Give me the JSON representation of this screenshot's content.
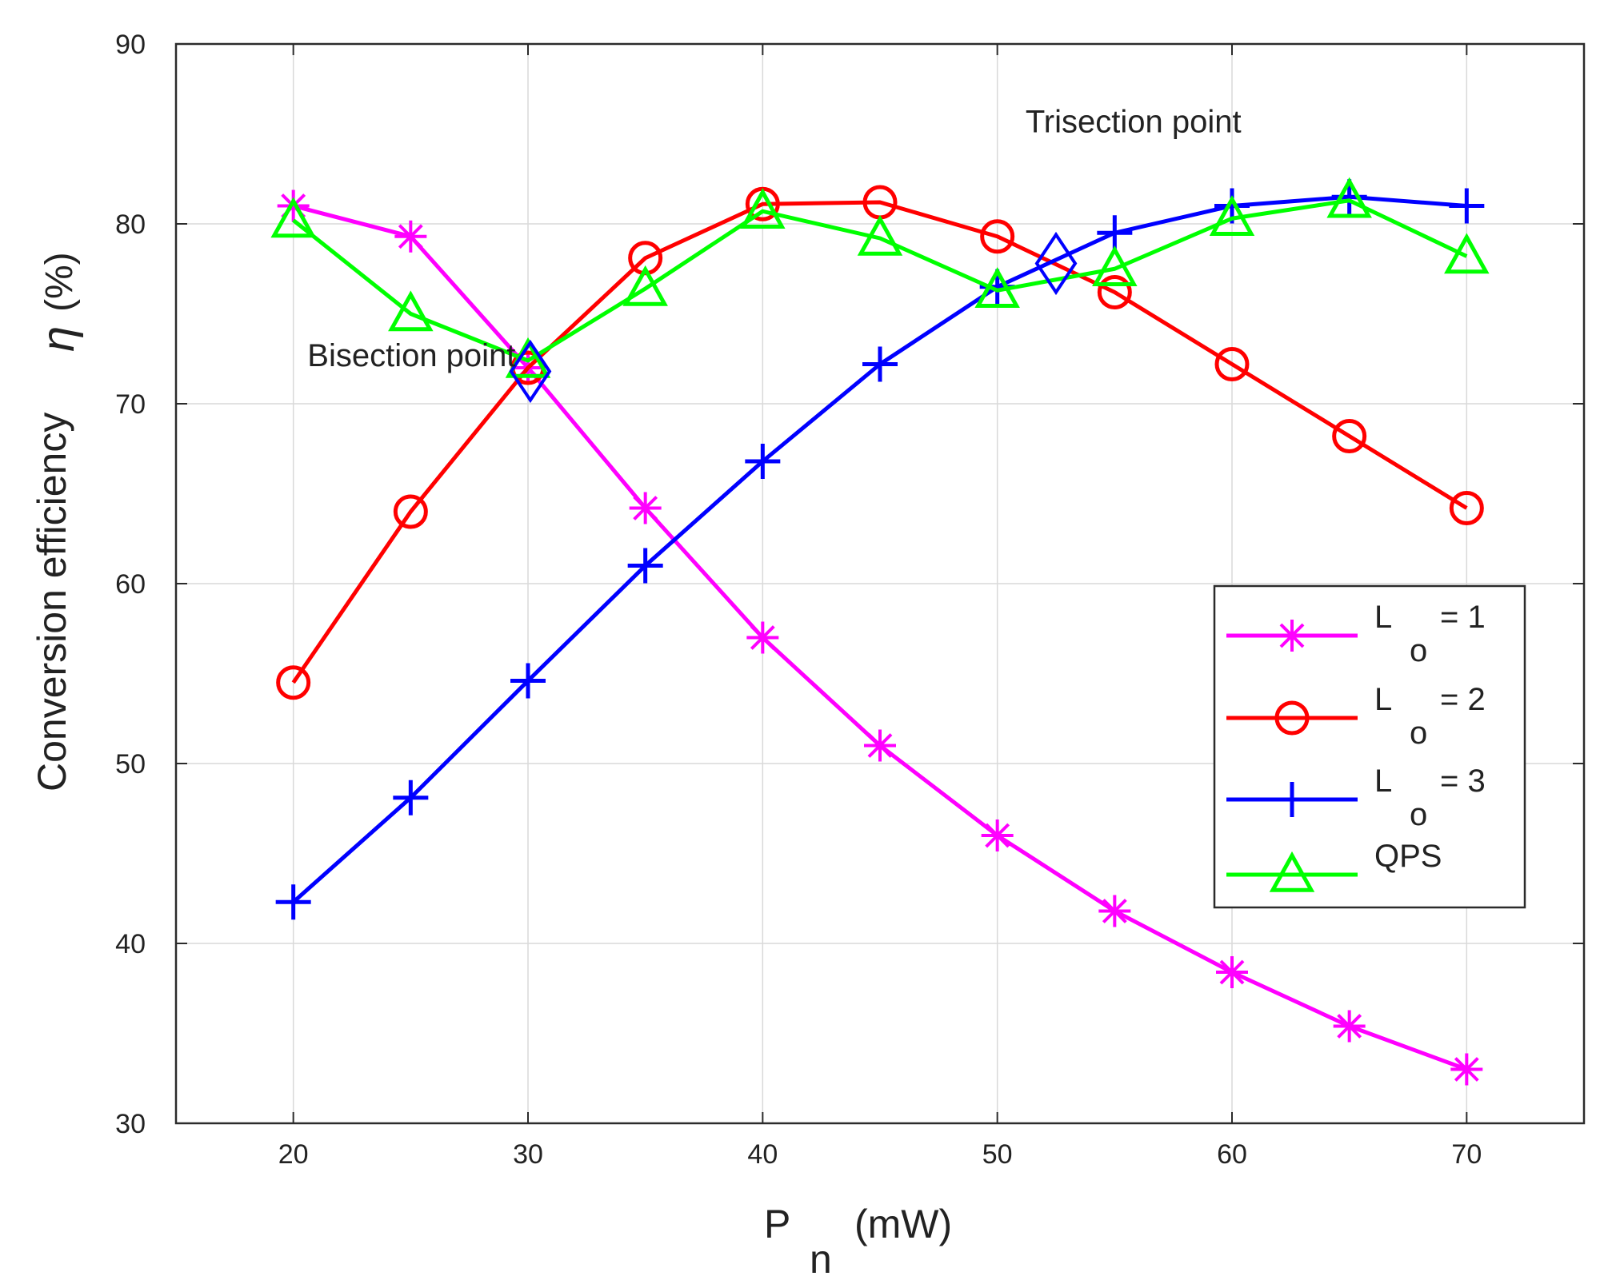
{
  "chart_data": {
    "type": "line",
    "title": "",
    "xlabel": {
      "main": "P",
      "sub": "n",
      "unit": "(mW)"
    },
    "ylabel": {
      "symbol": "η",
      "unit": "(%)",
      "name": "Conversion efficiency"
    },
    "xlim": [
      15,
      75
    ],
    "ylim": [
      30,
      90
    ],
    "xticks": [
      20,
      30,
      40,
      50,
      60,
      70
    ],
    "yticks": [
      30,
      40,
      50,
      60,
      70,
      80,
      90
    ],
    "grid": true,
    "legend_position": "center-right",
    "x": [
      20,
      25,
      30,
      35,
      40,
      45,
      50,
      55,
      60,
      65,
      70
    ],
    "series": [
      {
        "name": "L_o = 1",
        "label_main": "L",
        "label_sub": "o",
        "label_rest": "= 1",
        "color": "#ff00ff",
        "marker": "asterisk",
        "values": [
          81.0,
          79.3,
          72.0,
          64.2,
          57.0,
          51.0,
          46.0,
          41.8,
          38.4,
          35.4,
          33.0
        ]
      },
      {
        "name": "L_o = 2",
        "label_main": "L",
        "label_sub": "o",
        "label_rest": "= 2",
        "color": "#ff0000",
        "marker": "circle",
        "values": [
          54.5,
          64.0,
          72.0,
          78.1,
          81.1,
          81.2,
          79.3,
          76.2,
          72.2,
          68.2,
          64.2
        ]
      },
      {
        "name": "L_o = 3",
        "label_main": "L",
        "label_sub": "o",
        "label_rest": "= 3",
        "color": "#0000ff",
        "marker": "plus",
        "values": [
          42.3,
          48.1,
          54.6,
          61.0,
          66.8,
          72.2,
          76.5,
          79.5,
          81.0,
          81.5,
          81.0
        ]
      },
      {
        "name": "QPS",
        "label_main": "QPS",
        "label_sub": "",
        "label_rest": "",
        "color": "#00ff00",
        "marker": "triangle",
        "values": [
          80.2,
          75.0,
          72.4,
          76.4,
          80.7,
          79.2,
          76.3,
          77.5,
          80.3,
          81.3,
          78.2
        ]
      }
    ],
    "highlight_points": [
      {
        "x": 30.1,
        "y": 71.8,
        "color": "#0000ff",
        "marker": "diamond"
      },
      {
        "x": 52.5,
        "y": 77.8,
        "color": "#0000ff",
        "marker": "diamond"
      }
    ],
    "annotations": [
      {
        "text": "Bisection point",
        "x": 20.6,
        "y": 72.1
      },
      {
        "text": "Trisection point",
        "x": 51.2,
        "y": 85.1
      }
    ]
  }
}
